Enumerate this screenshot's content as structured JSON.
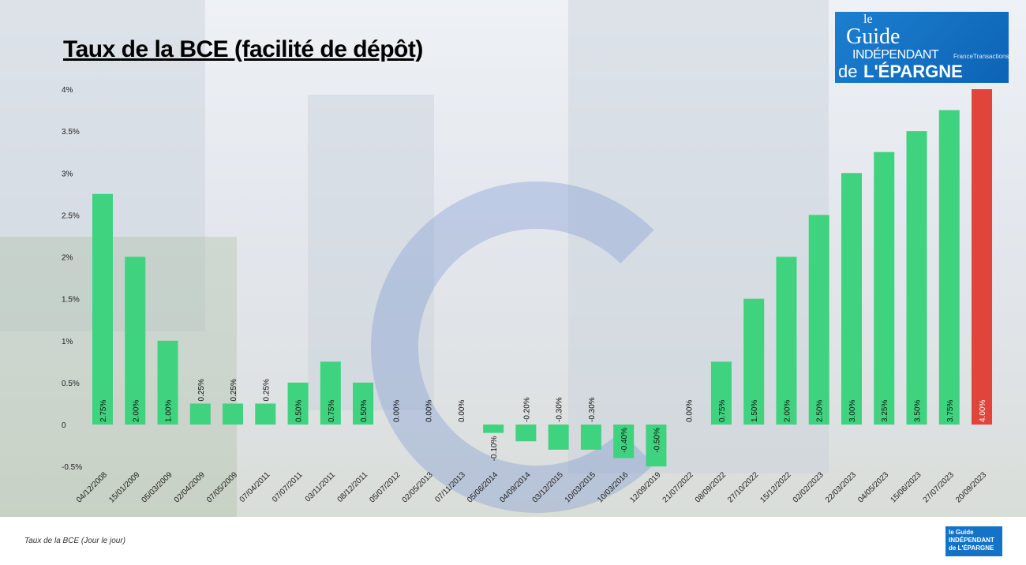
{
  "title": "Taux de la BCE (facilité de dépôt)",
  "logo": {
    "line1": "le",
    "line2": "Guide",
    "line3": "INDÉPENDANT",
    "line4": "de",
    "line5": "L'ÉPARGNE",
    "partner": "FranceTransactions.com"
  },
  "footer": {
    "caption": "Taux de la BCE (Jour le jour)",
    "logo_text": "le Guide INDÉPENDANT de L'ÉPARGNE"
  },
  "colors": {
    "bar": "#3fd27f",
    "highlight": "#e0443a",
    "background": "#e6eaee"
  },
  "chart_data": {
    "type": "bar",
    "title": "Taux de la BCE (facilité de dépôt)",
    "ylim": [
      -0.5,
      4
    ],
    "yticks": [
      -0.5,
      0,
      0.5,
      1,
      1.5,
      2,
      2.5,
      3,
      3.5,
      4
    ],
    "ytick_labels": [
      "-0.5%",
      "0",
      "0.5%",
      "1%",
      "1.5%",
      "2%",
      "2.5%",
      "3%",
      "3.5%",
      "4%"
    ],
    "grid": false,
    "categories": [
      "04/12/2008",
      "15/01/2009",
      "05/03/2009",
      "02/04/2009",
      "07/05/2009",
      "07/04/2011",
      "07/07/2011",
      "03/11/2011",
      "08/12/2011",
      "05/07/2012",
      "02/05/2013",
      "07/11/2013",
      "05/06/2014",
      "04/09/2014",
      "03/12/2015",
      "10/03/2015",
      "10/03/2016",
      "12/09/2019",
      "21/07/2022",
      "08/09/2022",
      "27/10/2022",
      "15/12/2022",
      "02/02/2023",
      "22/03/2023",
      "04/05/2023",
      "15/06/2023",
      "27/07/2023",
      "20/09/2023"
    ],
    "values": [
      2.75,
      2.0,
      1.0,
      0.25,
      0.25,
      0.25,
      0.5,
      0.75,
      0.5,
      0.0,
      0.0,
      0.0,
      -0.1,
      -0.2,
      -0.3,
      -0.3,
      -0.4,
      -0.5,
      0.0,
      0.75,
      1.5,
      2.0,
      2.5,
      3.0,
      3.25,
      3.5,
      3.75,
      4.0
    ],
    "data_labels": [
      "2.75%",
      "2.00%",
      "1.00%",
      "0.25%",
      "0.25%",
      "0.25%",
      "0.50%",
      "0.75%",
      "0.50%",
      "0.00%",
      "0.00%",
      "0.00%",
      "-0.10%",
      "-0.20%",
      "-0.30%",
      "-0.30%",
      "-0.40%",
      "-0.50%",
      "0.00%",
      "0.75%",
      "1.50%",
      "2.00%",
      "2.50%",
      "3.00%",
      "3.25%",
      "3.50%",
      "3.75%",
      "4.00%"
    ],
    "highlight_index": 27
  }
}
